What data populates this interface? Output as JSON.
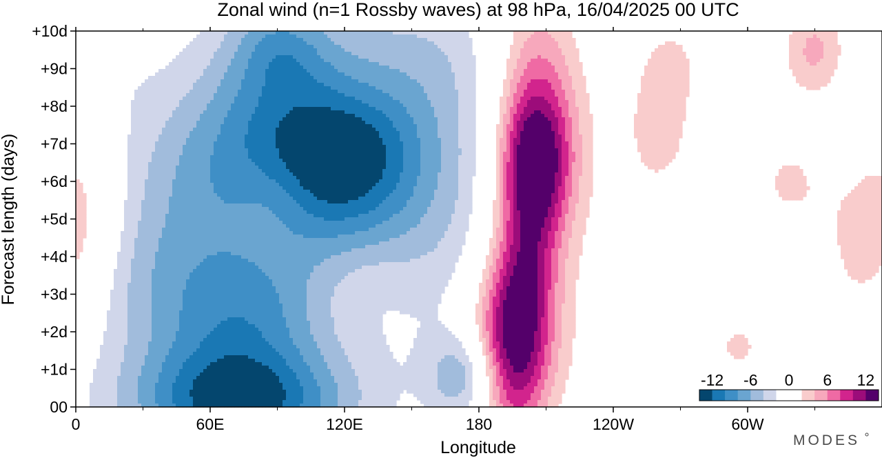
{
  "chart_data": {
    "type": "heatmap",
    "title": "Zonal wind (n=1 Rossby waves) at 98 hPa,  16/04/2025  00 UTC",
    "xlabel": "Longitude",
    "ylabel": "Forecast length (days)",
    "x_ticks": [
      {
        "lon": 0,
        "label": "0"
      },
      {
        "lon": 60,
        "label": "60E"
      },
      {
        "lon": 120,
        "label": "120E"
      },
      {
        "lon": 180,
        "label": "180"
      },
      {
        "lon": 240,
        "label": "120W"
      },
      {
        "lon": 300,
        "label": "60W"
      }
    ],
    "x_minor_ticks": [
      30,
      90,
      150,
      210,
      270,
      330
    ],
    "xlim": [
      0,
      360
    ],
    "y_ticks": [
      {
        "day": 0,
        "label": "00"
      },
      {
        "day": 1,
        "label": "+1d"
      },
      {
        "day": 2,
        "label": "+2d"
      },
      {
        "day": 3,
        "label": "+3d"
      },
      {
        "day": 4,
        "label": "+4d"
      },
      {
        "day": 5,
        "label": "+5d"
      },
      {
        "day": 6,
        "label": "+6d"
      },
      {
        "day": 7,
        "label": "+7d"
      },
      {
        "day": 8,
        "label": "+8d"
      },
      {
        "day": 9,
        "label": "+9d"
      },
      {
        "day": 10,
        "label": "+10d"
      }
    ],
    "ylim": [
      0,
      10
    ],
    "contour_levels": [
      -14,
      -12,
      -10,
      -8,
      -6,
      -4,
      -2,
      2,
      4,
      6,
      8,
      10,
      12,
      14
    ],
    "colorbar": {
      "labels": [
        {
          "value": -12,
          "label": "-12"
        },
        {
          "value": -6,
          "label": "-6"
        },
        {
          "value": 0,
          "label": "0"
        },
        {
          "value": 6,
          "label": "6"
        },
        {
          "value": 12,
          "label": "12"
        }
      ],
      "colors": [
        "#04466e",
        "#1a78b4",
        "#3f8fc6",
        "#6aa5d0",
        "#a1bcdc",
        "#d0d6ea",
        "#ffffff",
        "#ffffff",
        "#f9cccc",
        "#f7a8bc",
        "#ef6aa4",
        "#d2248d",
        "#9c0c7a",
        "#54006a"
      ]
    },
    "features": [
      {
        "lon": 73,
        "day": 0.05,
        "sx": 34,
        "sy": 1.05,
        "amp": -11.0
      },
      {
        "lon": 75,
        "day": 1.2,
        "sx": 26,
        "sy": 1.5,
        "amp": -2.8
      },
      {
        "lon": 57,
        "day": 2.7,
        "sx": 30,
        "sy": 1.5,
        "amp": -3.5
      },
      {
        "lon": 85,
        "day": 2.6,
        "sx": 20,
        "sy": 1.0,
        "amp": -2.0
      },
      {
        "lon": 40,
        "day": 4.2,
        "sx": 28,
        "sy": 2.0,
        "amp": -2.5
      },
      {
        "lon": 118,
        "day": 6.1,
        "sx": 26,
        "sy": 1.5,
        "amp": -8.2
      },
      {
        "lon": 128,
        "day": 7.0,
        "sx": 20,
        "sy": 1.0,
        "amp": -2.5
      },
      {
        "lon": 92,
        "day": 8.3,
        "sx": 24,
        "sy": 1.8,
        "amp": -5.8
      },
      {
        "lon": 90,
        "day": 9.6,
        "sx": 14,
        "sy": 0.8,
        "amp": -3.2
      },
      {
        "lon": 60,
        "day": 6.6,
        "sx": 24,
        "sy": 1.6,
        "amp": -3.6
      },
      {
        "lon": 140,
        "day": 8.5,
        "sx": 38,
        "sy": 2.0,
        "amp": -2.6
      },
      {
        "lon": 105,
        "day": 4.2,
        "sx": 55,
        "sy": 2.4,
        "amp": -2.2
      },
      {
        "lon": 165,
        "day": 5.0,
        "sx": 25,
        "sy": 2.0,
        "amp": -1.8
      },
      {
        "lon": 158,
        "day": 9.2,
        "sx": 22,
        "sy": 1.4,
        "amp": -1.8
      },
      {
        "lon": 10,
        "day": 9.0,
        "sx": 18,
        "sy": 1.3,
        "amp": -1.4
      },
      {
        "lon": 88,
        "day": 5.6,
        "sx": 12,
        "sy": 0.8,
        "amp": 1.6
      },
      {
        "lon": 128,
        "day": 3.4,
        "sx": 16,
        "sy": 0.9,
        "amp": 1.3
      },
      {
        "lon": 175,
        "day": 0.8,
        "sx": 12,
        "sy": 0.8,
        "amp": -6.5
      },
      {
        "lon": 195,
        "day": 1.6,
        "sx": 12,
        "sy": 1.8,
        "amp": 15.0
      },
      {
        "lon": 202,
        "day": 4.2,
        "sx": 10,
        "sy": 1.6,
        "amp": 6.5
      },
      {
        "lon": 205,
        "day": 6.5,
        "sx": 11,
        "sy": 1.3,
        "amp": 12.0
      },
      {
        "lon": 205,
        "day": 8.8,
        "sx": 13,
        "sy": 1.8,
        "amp": 6.0
      },
      {
        "lon": 213,
        "day": 5.5,
        "sx": 18,
        "sy": 3.5,
        "amp": 2.2
      },
      {
        "lon": 232,
        "day": 6.0,
        "sx": 24,
        "sy": 4.0,
        "amp": 1.8
      },
      {
        "lon": 262,
        "day": 7.3,
        "sx": 12,
        "sy": 1.4,
        "amp": 4.0
      },
      {
        "lon": 268,
        "day": 9.3,
        "sx": 12,
        "sy": 1.0,
        "amp": 3.0
      },
      {
        "lon": 293,
        "day": 2.2,
        "sx": 14,
        "sy": 1.5,
        "amp": 2.8
      },
      {
        "lon": 297,
        "day": 1.55,
        "sx": 6,
        "sy": 0.35,
        "amp": 2.2
      },
      {
        "lon": 318,
        "day": 6.0,
        "sx": 16,
        "sy": 1.2,
        "amp": 4.2
      },
      {
        "lon": 330,
        "day": 9.5,
        "sx": 12,
        "sy": 1.0,
        "amp": 6.5
      },
      {
        "lon": 348,
        "day": 3.8,
        "sx": 14,
        "sy": 1.5,
        "amp": 3.5
      },
      {
        "lon": 2,
        "day": 5.3,
        "sx": 13,
        "sy": 1.7,
        "amp": 4.8
      },
      {
        "lon": 240,
        "day": 0.8,
        "sx": 18,
        "sy": 1.4,
        "amp": 1.5
      }
    ],
    "grid": false,
    "legend": "colorbar bottom-right inside plot"
  },
  "brand": "MODES"
}
